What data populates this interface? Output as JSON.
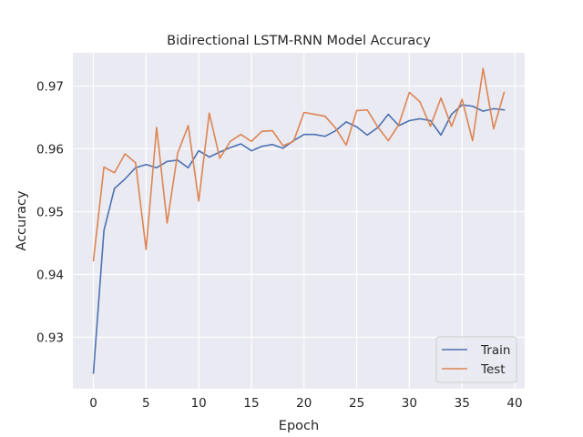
{
  "chart_data": {
    "type": "line",
    "title": "Bidirectional LSTM-RNN Model Accuracy",
    "xlabel": "Epoch",
    "ylabel": "Accuracy",
    "xlim": [
      -1.95,
      40.95
    ],
    "ylim": [
      0.9218,
      0.9753
    ],
    "xticks": [
      0,
      5,
      10,
      15,
      20,
      25,
      30,
      35,
      40
    ],
    "yticks": [
      0.93,
      0.94,
      0.95,
      0.96,
      0.97
    ],
    "x": [
      0,
      1,
      2,
      3,
      4,
      5,
      6,
      7,
      8,
      9,
      10,
      11,
      12,
      13,
      14,
      15,
      16,
      17,
      18,
      19,
      20,
      21,
      22,
      23,
      24,
      25,
      26,
      27,
      28,
      29,
      30,
      31,
      32,
      33,
      34,
      35,
      36,
      37,
      38,
      39
    ],
    "series": [
      {
        "name": "Train",
        "color": "#4c72b0",
        "values": [
          0.9243,
          0.947,
          0.9537,
          0.9552,
          0.957,
          0.9575,
          0.957,
          0.958,
          0.9582,
          0.957,
          0.9597,
          0.9587,
          0.9595,
          0.9602,
          0.9608,
          0.9597,
          0.9604,
          0.9607,
          0.9601,
          0.9613,
          0.9623,
          0.9623,
          0.962,
          0.9629,
          0.9643,
          0.9635,
          0.9622,
          0.9634,
          0.9655,
          0.9637,
          0.9645,
          0.9648,
          0.9645,
          0.9622,
          0.9655,
          0.967,
          0.9668,
          0.966,
          0.9664,
          0.9662
        ]
      },
      {
        "name": "Test",
        "color": "#dd8452",
        "values": [
          0.9422,
          0.9571,
          0.9562,
          0.9592,
          0.9578,
          0.944,
          0.9634,
          0.9482,
          0.9593,
          0.9637,
          0.9517,
          0.9657,
          0.9585,
          0.9612,
          0.9623,
          0.9612,
          0.9628,
          0.9629,
          0.9605,
          0.9612,
          0.9658,
          0.9655,
          0.9652,
          0.9633,
          0.9606,
          0.9661,
          0.9662,
          0.9635,
          0.9613,
          0.9639,
          0.969,
          0.9675,
          0.9636,
          0.9681,
          0.9636,
          0.9679,
          0.9613,
          0.9728,
          0.9632,
          0.969
        ]
      }
    ],
    "legend_position": "lower-right",
    "grid": true,
    "style": {
      "background": "#eaeaf2",
      "grid_color": "#ffffff",
      "text_color": "#262626"
    }
  }
}
